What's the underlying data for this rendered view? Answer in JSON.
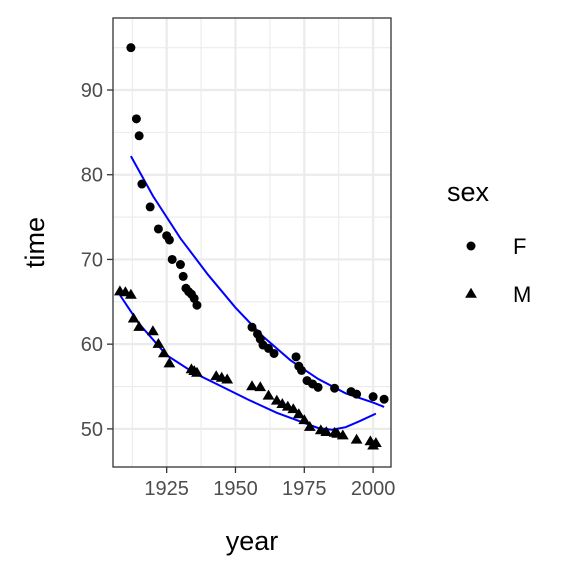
{
  "chart_data": {
    "type": "scatter",
    "xlabel": "year",
    "ylabel": "time",
    "xlim": [
      1905.5,
      2006.5
    ],
    "ylim": [
      45.5,
      98.5
    ],
    "xticks": [
      {
        "value": 1925,
        "label": "1925"
      },
      {
        "value": 1950,
        "label": "1950"
      },
      {
        "value": 1975,
        "label": "1975"
      },
      {
        "value": 2000,
        "label": "2000"
      }
    ],
    "yticks": [
      {
        "value": 50,
        "label": "50"
      },
      {
        "value": 60,
        "label": "60"
      },
      {
        "value": 70,
        "label": "70"
      },
      {
        "value": 80,
        "label": "80"
      },
      {
        "value": 90,
        "label": "90"
      }
    ],
    "legend": {
      "title": "sex",
      "position": "right"
    },
    "grid": true,
    "series": [
      {
        "name": "F",
        "marker": "circle",
        "color": "#000000",
        "points": [
          [
            1912,
            95.0
          ],
          [
            1914,
            86.6
          ],
          [
            1915,
            84.6
          ],
          [
            1916,
            78.9
          ],
          [
            1919,
            76.2
          ],
          [
            1922,
            73.6
          ],
          [
            1925,
            72.8
          ],
          [
            1926,
            72.3
          ],
          [
            1927,
            70.0
          ],
          [
            1930,
            69.4
          ],
          [
            1931,
            68.0
          ],
          [
            1932,
            66.6
          ],
          [
            1933,
            66.2
          ],
          [
            1934,
            65.9
          ],
          [
            1935,
            65.4
          ],
          [
            1936,
            64.6
          ],
          [
            1956,
            62.0
          ],
          [
            1958,
            61.2
          ],
          [
            1959,
            60.6
          ],
          [
            1960,
            59.9
          ],
          [
            1962,
            59.5
          ],
          [
            1964,
            58.9
          ],
          [
            1972,
            58.5
          ],
          [
            1973,
            57.4
          ],
          [
            1974,
            56.9
          ],
          [
            1976,
            55.7
          ],
          [
            1978,
            55.3
          ],
          [
            1980,
            54.9
          ],
          [
            1986,
            54.8
          ],
          [
            1992,
            54.4
          ],
          [
            1994,
            54.1
          ],
          [
            2000,
            53.8
          ],
          [
            2004,
            53.5
          ]
        ]
      },
      {
        "name": "M",
        "marker": "triangle",
        "color": "#000000",
        "points": [
          [
            1908,
            66.2
          ],
          [
            1910,
            66.1
          ],
          [
            1912,
            65.8
          ],
          [
            1913,
            63.0
          ],
          [
            1915,
            62.0
          ],
          [
            1920,
            61.5
          ],
          [
            1922,
            60.0
          ],
          [
            1924,
            58.9
          ],
          [
            1926,
            57.7
          ],
          [
            1934,
            57.0
          ],
          [
            1935,
            56.8
          ],
          [
            1936,
            56.6
          ],
          [
            1943,
            56.2
          ],
          [
            1945,
            56.0
          ],
          [
            1947,
            55.8
          ],
          [
            1956,
            55.0
          ],
          [
            1959,
            54.9
          ],
          [
            1962,
            53.9
          ],
          [
            1965,
            53.3
          ],
          [
            1967,
            52.9
          ],
          [
            1969,
            52.6
          ],
          [
            1971,
            52.3
          ],
          [
            1973,
            51.7
          ],
          [
            1975,
            51.0
          ],
          [
            1977,
            50.2
          ],
          [
            1981,
            49.8
          ],
          [
            1983,
            49.6
          ],
          [
            1986,
            49.5
          ],
          [
            1987,
            49.4
          ],
          [
            1989,
            49.2
          ],
          [
            1994,
            48.7
          ],
          [
            1999,
            48.5
          ],
          [
            2000,
            48.0
          ],
          [
            2001,
            48.3
          ]
        ]
      }
    ],
    "trend_lines": [
      {
        "series": "F",
        "color": "#0000ff",
        "points": [
          [
            1912,
            82.2
          ],
          [
            1920,
            77.5
          ],
          [
            1930,
            72.5
          ],
          [
            1940,
            68.2
          ],
          [
            1950,
            64.3
          ],
          [
            1960,
            60.9
          ],
          [
            1970,
            58.1
          ],
          [
            1980,
            55.9
          ],
          [
            1990,
            54.2
          ],
          [
            2000,
            53.1
          ],
          [
            2004,
            52.6
          ]
        ]
      },
      {
        "series": "M",
        "color": "#0000ff",
        "points": [
          [
            1908,
            65.8
          ],
          [
            1915,
            62.4
          ],
          [
            1925,
            58.7
          ],
          [
            1935,
            56.6
          ],
          [
            1945,
            55.0
          ],
          [
            1955,
            53.4
          ],
          [
            1965,
            51.9
          ],
          [
            1975,
            50.7
          ],
          [
            1980,
            50.1
          ],
          [
            1985,
            49.9
          ],
          [
            1990,
            50.2
          ],
          [
            1995,
            50.9
          ],
          [
            2001,
            51.8
          ]
        ]
      }
    ]
  }
}
